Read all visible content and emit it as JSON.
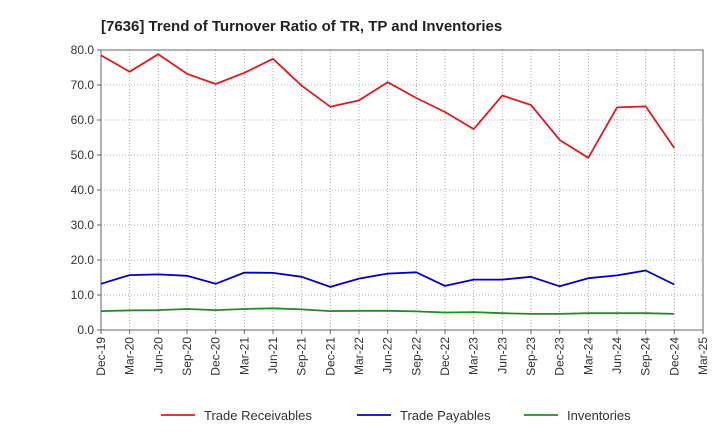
{
  "chart_data": {
    "type": "line",
    "title": "[7636]  Trend of Turnover Ratio of TR, TP and Inventories",
    "xlabel": "",
    "ylabel": "",
    "ylim": [
      0,
      80
    ],
    "yticks": [
      "0.0",
      "10.0",
      "20.0",
      "30.0",
      "40.0",
      "50.0",
      "60.0",
      "70.0",
      "80.0"
    ],
    "x_tick_labels": [
      "Dec-19",
      "Mar-20",
      "Jun-20",
      "Sep-20",
      "Dec-20",
      "Mar-21",
      "Jun-21",
      "Sep-21",
      "Dec-21",
      "Mar-22",
      "Jun-22",
      "Sep-22",
      "Dec-22",
      "Mar-23",
      "Jun-23",
      "Sep-23",
      "Dec-23",
      "Mar-24",
      "Jun-24",
      "Sep-24",
      "Dec-24",
      "Mar-25"
    ],
    "categories": [
      "Dec-19",
      "Mar-20",
      "Jun-20",
      "Sep-20",
      "Dec-20",
      "Mar-21",
      "Jun-21",
      "Sep-21",
      "Dec-21",
      "Mar-22",
      "Jun-22",
      "Sep-22",
      "Dec-22",
      "Mar-23",
      "Jun-23",
      "Sep-23",
      "Dec-23",
      "Mar-24",
      "Jun-24",
      "Sep-24",
      "Dec-24"
    ],
    "series": [
      {
        "name": "Trade Receivables",
        "color": "#e31a1c",
        "values": [
          78.5,
          73.8,
          78.8,
          73.2,
          70.3,
          73.5,
          77.5,
          69.8,
          63.8,
          65.6,
          70.8,
          66.3,
          62.3,
          57.4,
          67.0,
          64.3,
          54.3,
          49.2,
          63.6,
          63.9,
          52.0
        ]
      },
      {
        "name": "Trade Payables",
        "color": "#0000cc",
        "values": [
          13.2,
          15.7,
          15.9,
          15.5,
          13.2,
          16.4,
          16.3,
          15.2,
          12.3,
          14.7,
          16.1,
          16.5,
          12.6,
          14.4,
          14.4,
          15.2,
          12.5,
          14.8,
          15.6,
          17.0,
          13.0
        ]
      },
      {
        "name": "Inventories",
        "color": "#228b22",
        "values": [
          5.4,
          5.6,
          5.7,
          6.0,
          5.7,
          6.0,
          6.2,
          5.9,
          5.4,
          5.5,
          5.5,
          5.3,
          5.0,
          5.1,
          4.8,
          4.6,
          4.6,
          4.8,
          4.8,
          4.8,
          4.6
        ]
      }
    ],
    "grid": true,
    "legend_position": "bottom"
  }
}
